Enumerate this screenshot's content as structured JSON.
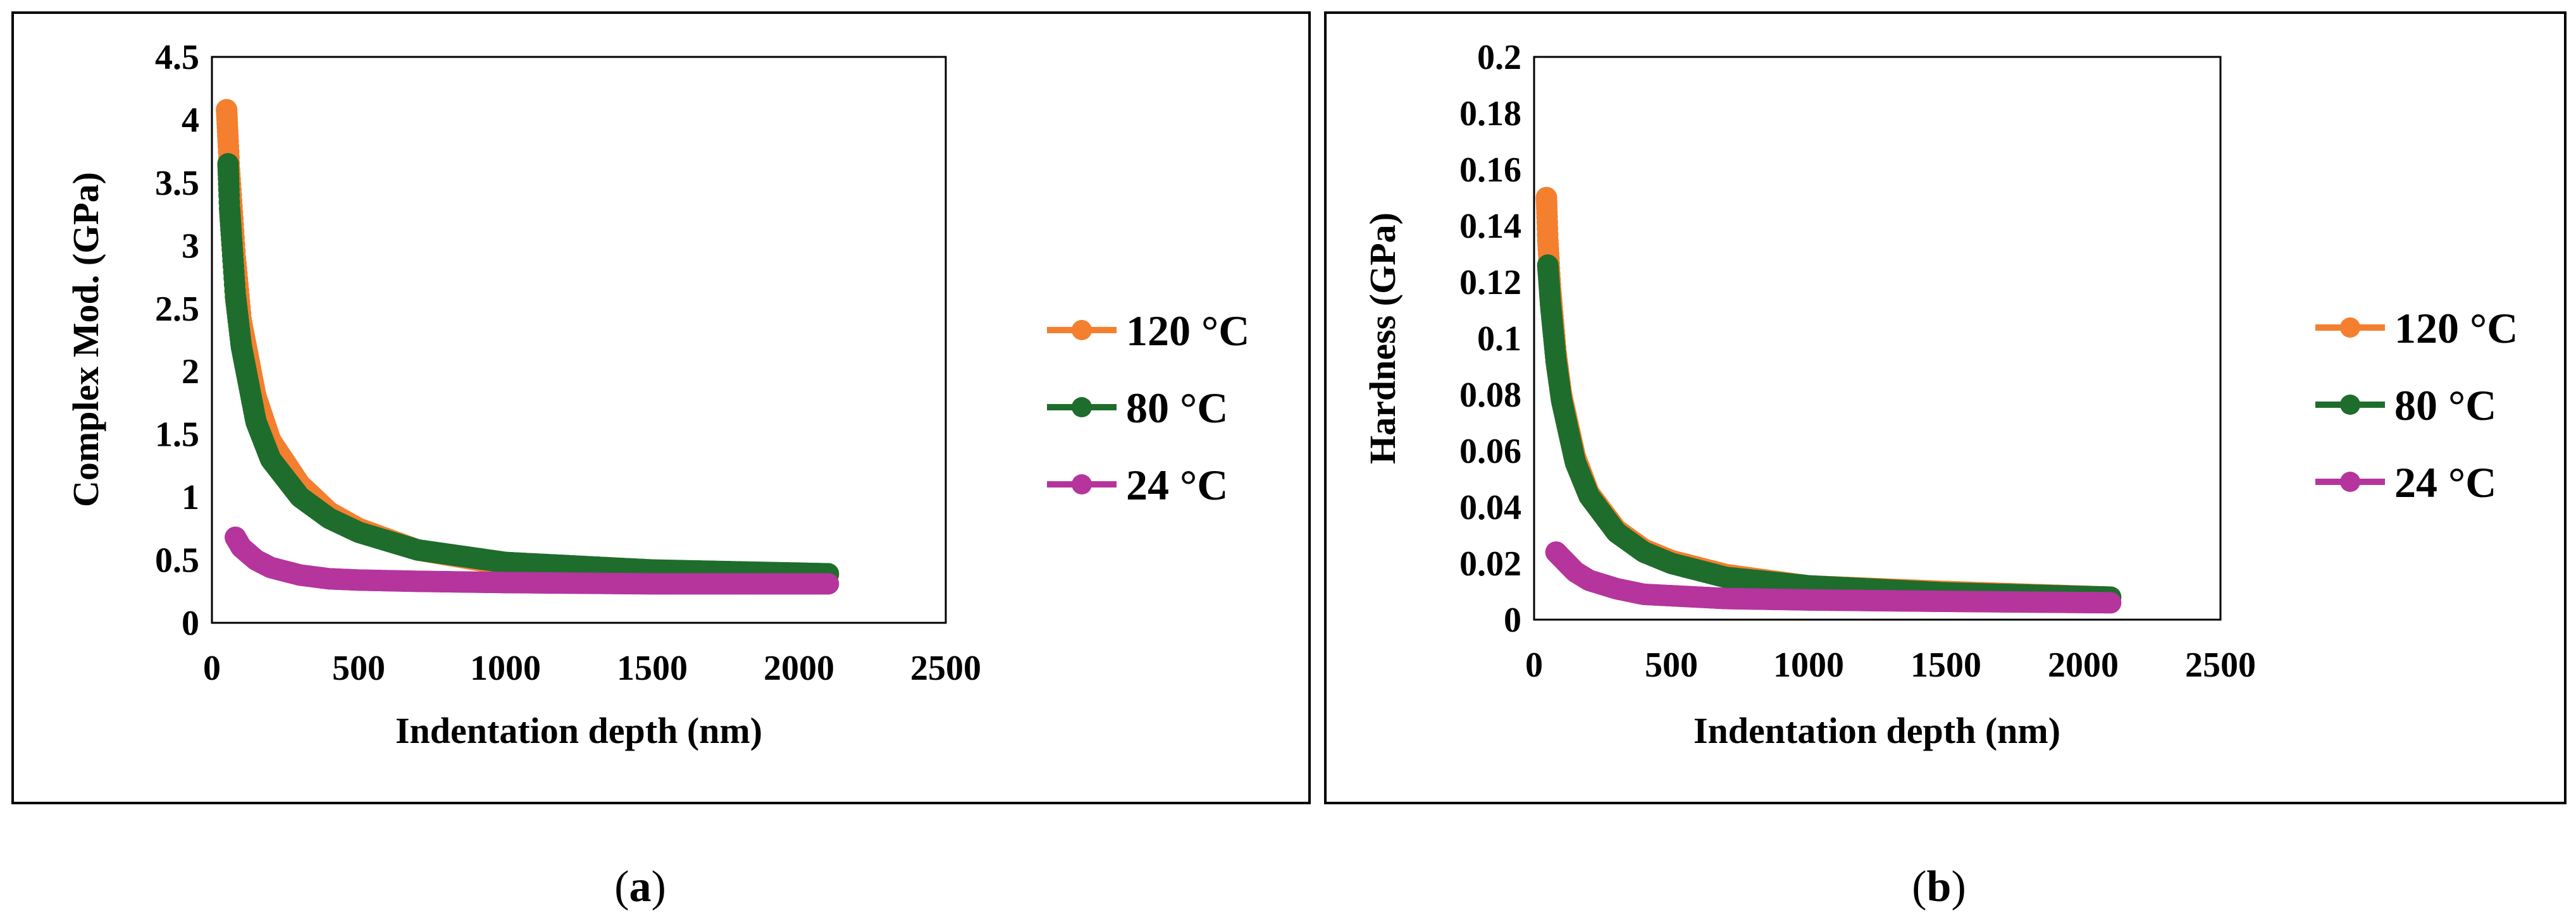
{
  "chart_data": [
    {
      "type": "scatter",
      "panel_label": "a",
      "title": "",
      "xlabel": "Indentation depth (nm)",
      "ylabel": "Complex Mod. (GPa)",
      "xlim": [
        0,
        2500
      ],
      "ylim": [
        0,
        4.5
      ],
      "xticks": [
        "0",
        "500",
        "1000",
        "1500",
        "2000",
        "2500"
      ],
      "yticks": [
        "0",
        "0.5",
        "1",
        "1.5",
        "2",
        "2.5",
        "3",
        "3.5",
        "4",
        "4.5"
      ],
      "legend_position": "right",
      "series": [
        {
          "name": "120 °C",
          "color": "#f47f2f",
          "x": [
            50,
            60,
            80,
            100,
            150,
            200,
            300,
            400,
            500,
            700,
            1000,
            1500,
            2100
          ],
          "y": [
            4.08,
            3.6,
            2.9,
            2.4,
            1.8,
            1.45,
            1.1,
            0.88,
            0.75,
            0.58,
            0.46,
            0.4,
            0.38
          ]
        },
        {
          "name": "80 °C",
          "color": "#1e6d2c",
          "x": [
            55,
            60,
            80,
            100,
            150,
            200,
            300,
            400,
            500,
            700,
            1000,
            1500,
            2100
          ],
          "y": [
            3.65,
            3.3,
            2.6,
            2.2,
            1.6,
            1.3,
            1.0,
            0.83,
            0.72,
            0.58,
            0.48,
            0.42,
            0.39
          ]
        },
        {
          "name": "24 °C",
          "color": "#b5359d",
          "x": [
            80,
            100,
            150,
            200,
            300,
            400,
            500,
            700,
            1000,
            1500,
            2100
          ],
          "y": [
            0.68,
            0.6,
            0.5,
            0.44,
            0.38,
            0.35,
            0.34,
            0.33,
            0.32,
            0.31,
            0.31
          ]
        }
      ]
    },
    {
      "type": "scatter",
      "panel_label": "b",
      "title": "",
      "xlabel": "Indentation depth (nm)",
      "ylabel": "Hardness (GPa)",
      "xlim": [
        0,
        2500
      ],
      "ylim": [
        0,
        0.2
      ],
      "xticks": [
        "0",
        "500",
        "1000",
        "1500",
        "2000",
        "2500"
      ],
      "yticks": [
        "0",
        "0.02",
        "0.04",
        "0.06",
        "0.08",
        "0.1",
        "0.12",
        "0.14",
        "0.16",
        "0.18",
        "0.2"
      ],
      "legend_position": "right",
      "series": [
        {
          "name": "120 °C",
          "color": "#f47f2f",
          "x": [
            45,
            50,
            60,
            80,
            100,
            150,
            200,
            300,
            400,
            500,
            700,
            1000,
            1500,
            2100
          ],
          "y": [
            0.15,
            0.135,
            0.118,
            0.095,
            0.08,
            0.058,
            0.045,
            0.032,
            0.025,
            0.021,
            0.016,
            0.012,
            0.01,
            0.008
          ]
        },
        {
          "name": "80 °C",
          "color": "#1e6d2c",
          "x": [
            50,
            60,
            80,
            100,
            150,
            200,
            300,
            400,
            500,
            700,
            1000,
            1500,
            2100
          ],
          "y": [
            0.126,
            0.112,
            0.092,
            0.078,
            0.056,
            0.044,
            0.031,
            0.024,
            0.02,
            0.015,
            0.012,
            0.0095,
            0.008
          ]
        },
        {
          "name": "24 °C",
          "color": "#b5359d",
          "x": [
            80,
            100,
            150,
            200,
            300,
            400,
            500,
            700,
            1000,
            1500,
            2100
          ],
          "y": [
            0.024,
            0.022,
            0.017,
            0.014,
            0.011,
            0.009,
            0.0085,
            0.0075,
            0.007,
            0.0065,
            0.006
          ]
        }
      ]
    }
  ]
}
